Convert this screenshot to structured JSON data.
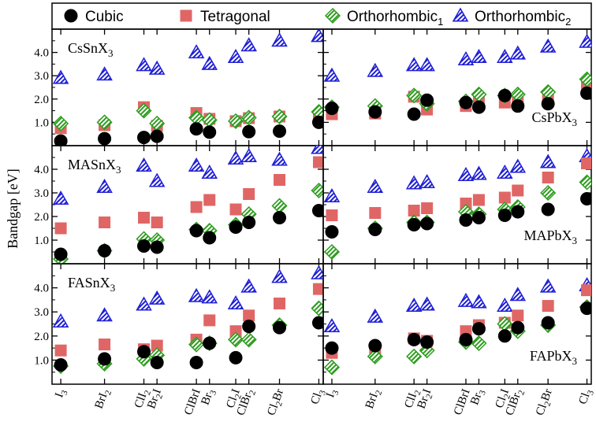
{
  "figure": {
    "ylabel": "Bandgap [eV]",
    "legend": [
      {
        "name": "Cubic",
        "sub": "",
        "marker": "circle",
        "color": "#000000"
      },
      {
        "name": "Tetragonal",
        "sub": "",
        "marker": "square",
        "color": "#e06666"
      },
      {
        "name": "Orthorhombic",
        "sub": "1",
        "marker": "diamond",
        "color": "#2e9d1f"
      },
      {
        "name": "Orthorhombic",
        "sub": "2",
        "marker": "triangle",
        "color": "#1f1fd6"
      }
    ]
  },
  "chart_data": {
    "type": "scatter",
    "layout": "3 rows x 2 columns, shared axes",
    "categories": [
      {
        "base": "I",
        "sub": "3",
        "tail": ""
      },
      {
        "base": "BrI",
        "sub": "2",
        "tail": ""
      },
      {
        "base": "ClI",
        "sub": "2",
        "tail": ""
      },
      {
        "base": "Br",
        "sub": "2",
        "tail": "I"
      },
      {
        "base": "ClBrI",
        "sub": "",
        "tail": ""
      },
      {
        "base": "Br",
        "sub": "3",
        "tail": ""
      },
      {
        "base": "Cl",
        "sub": "2",
        "tail": "I"
      },
      {
        "base": "ClBr",
        "sub": "2",
        "tail": ""
      },
      {
        "base": "Cl",
        "sub": "2",
        "tail": "Br"
      },
      {
        "base": "Cl",
        "sub": "3",
        "tail": ""
      }
    ],
    "x": [
      0.0,
      1.0,
      1.9,
      2.2,
      3.1,
      3.4,
      4.0,
      4.3,
      5.0,
      5.9
    ],
    "xlim": [
      -0.2,
      6.0
    ],
    "ylim": [
      0.0,
      5.0
    ],
    "yticks": [
      "1.0",
      "2.0",
      "3.0",
      "4.0"
    ],
    "panels": [
      {
        "label": "CsSnX",
        "sub": "3",
        "label_pos": "top-left",
        "cubic": [
          0.2,
          0.3,
          0.35,
          0.4,
          0.72,
          0.58,
          null,
          0.6,
          0.62,
          1.0
        ],
        "tetragonal": [
          0.75,
          0.88,
          1.65,
          0.85,
          1.4,
          1.15,
          1.05,
          1.18,
          1.25,
          1.15
        ],
        "ortho1": [
          0.95,
          1.0,
          1.5,
          0.95,
          1.2,
          1.1,
          1.05,
          1.2,
          1.25,
          1.45
        ],
        "ortho2": [
          2.9,
          3.05,
          3.45,
          3.3,
          4.0,
          3.5,
          3.8,
          4.3,
          4.5,
          4.7
        ]
      },
      {
        "label": "CsPbX",
        "sub": "3",
        "label_pos": "bottom-right",
        "cubic": [
          1.6,
          1.45,
          1.35,
          1.95,
          1.85,
          1.65,
          2.15,
          1.7,
          1.8,
          2.25
        ],
        "tetragonal": [
          1.35,
          1.38,
          2.1,
          1.55,
          1.7,
          2.0,
          1.85,
          2.0,
          2.1,
          2.6
        ],
        "ortho1": [
          1.65,
          1.7,
          2.15,
          1.8,
          1.9,
          2.2,
          2.15,
          2.2,
          2.3,
          2.85
        ],
        "ortho2": [
          3.0,
          3.2,
          3.45,
          3.45,
          3.7,
          3.8,
          3.8,
          3.95,
          4.25,
          4.45
        ]
      },
      {
        "label": "MASnX",
        "sub": "3",
        "label_pos": "top-left",
        "cubic": [
          0.4,
          0.55,
          0.75,
          0.7,
          1.4,
          1.1,
          1.55,
          1.75,
          1.95,
          2.25
        ],
        "tetragonal": [
          1.5,
          1.75,
          1.95,
          1.75,
          2.4,
          2.7,
          2.3,
          2.95,
          3.55,
          4.3
        ],
        "ortho1": [
          0.2,
          0.55,
          1.05,
          1.0,
          1.45,
          1.4,
          1.65,
          2.1,
          2.45,
          3.1
        ],
        "ortho2": [
          2.75,
          3.25,
          4.15,
          3.5,
          4.15,
          3.85,
          4.45,
          4.55,
          4.4,
          4.9
        ]
      },
      {
        "label": "MAPbX",
        "sub": "3",
        "label_pos": "bottom-right",
        "cubic": [
          1.35,
          1.45,
          1.65,
          1.7,
          1.85,
          1.95,
          2.05,
          2.2,
          2.3,
          2.75
        ],
        "tetragonal": [
          2.05,
          2.15,
          2.25,
          2.35,
          2.55,
          2.7,
          2.8,
          3.1,
          3.65,
          4.25
        ],
        "ortho1": [
          0.5,
          1.5,
          1.75,
          1.75,
          2.2,
          2.1,
          2.3,
          2.4,
          3.0,
          3.45
        ],
        "ortho2": [
          2.85,
          3.25,
          3.4,
          3.45,
          3.75,
          3.8,
          3.85,
          4.1,
          4.3,
          4.55
        ]
      },
      {
        "label": "FASnX",
        "sub": "3",
        "label_pos": "top-left",
        "cubic": [
          0.8,
          1.05,
          1.35,
          0.9,
          0.9,
          1.7,
          1.1,
          2.4,
          2.35,
          2.55
        ],
        "tetragonal": [
          1.4,
          1.65,
          1.45,
          1.6,
          1.85,
          2.65,
          2.2,
          2.85,
          3.35,
          3.95
        ],
        "ortho1": [
          0.75,
          0.85,
          1.05,
          1.2,
          1.65,
          1.7,
          1.85,
          1.85,
          2.45,
          3.15
        ],
        "ortho2": [
          2.6,
          2.85,
          3.3,
          3.55,
          3.65,
          3.6,
          3.35,
          4.05,
          4.45,
          4.6
        ]
      },
      {
        "label": "FAPbX",
        "sub": "3",
        "label_pos": "bottom-right",
        "cubic": [
          1.5,
          1.6,
          1.85,
          1.75,
          1.85,
          2.3,
          2.0,
          2.35,
          2.55,
          3.15
        ],
        "tetragonal": [
          1.3,
          1.5,
          1.9,
          1.8,
          2.2,
          2.45,
          2.55,
          2.85,
          3.25,
          3.9
        ],
        "ortho1": [
          0.7,
          1.15,
          1.15,
          1.4,
          1.75,
          1.7,
          2.5,
          2.2,
          2.45,
          3.2
        ],
        "ortho2": [
          2.4,
          2.8,
          3.25,
          3.3,
          3.45,
          3.4,
          3.25,
          3.7,
          4.05,
          4.1
        ]
      }
    ]
  }
}
